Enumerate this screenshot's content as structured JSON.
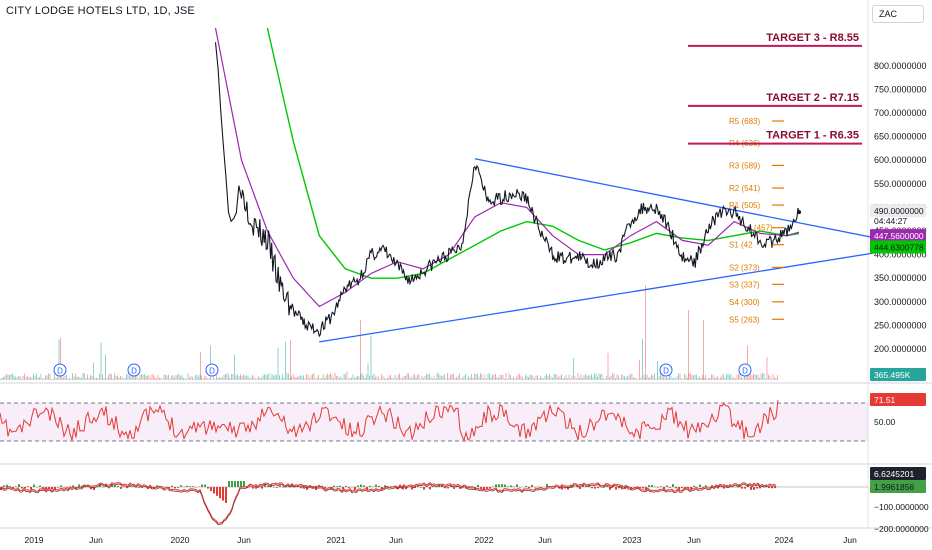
{
  "header": {
    "title": "CITY LODGE HOTELS LTD, 1D, JSE",
    "currency": "ZAC"
  },
  "targets": [
    {
      "label": "TARGET 3 - R8.55",
      "value": 855
    },
    {
      "label": "TARGET 2 - R7.15",
      "value": 715
    },
    {
      "label": "TARGET 1 - R6.35",
      "value": 635
    }
  ],
  "levels": [
    {
      "label": "R5 (683)",
      "value": 683
    },
    {
      "label": "R4 (636)",
      "value": 636
    },
    {
      "label": "R3 (589)",
      "value": 589
    },
    {
      "label": "R2 (541)",
      "value": 541
    },
    {
      "label": "R1 (505)",
      "value": 505
    },
    {
      "label": "(457)",
      "value": 457
    },
    {
      "label": "S1 (42",
      "value": 421
    },
    {
      "label": "S2 (373)",
      "value": 373
    },
    {
      "label": "S3 (337)",
      "value": 337
    },
    {
      "label": "S4 (300)",
      "value": 300
    },
    {
      "label": "S5 (263)",
      "value": 263
    }
  ],
  "price_badges": {
    "last": "490.0000000",
    "countdown": "04:44:27",
    "ma_purple": "447.5600000",
    "ma_green": "444.6300778",
    "volume": "365.495K",
    "rsi": "71.51",
    "macd_1": "6.6245201",
    "macd_2": "1.9961856"
  },
  "dividend_marker": "D",
  "chart_data": {
    "type": "line",
    "title": "CITY LODGE HOTELS LTD, 1D, JSE",
    "price_axis": {
      "ylim": [
        140,
        880
      ],
      "ticks": [
        "800.0000000",
        "750.0000000",
        "700.0000000",
        "650.0000000",
        "600.0000000",
        "550.0000000",
        "500.0000000",
        "450.0000000",
        "400.0000000",
        "350.0000000",
        "300.0000000",
        "250.0000000",
        "200.0000000",
        "150.0000000"
      ]
    },
    "rsi_axis": {
      "ticks": [
        "50.00"
      ],
      "bands": [
        70,
        30
      ]
    },
    "macd_axis": {
      "ticks": [
        "0.0000000",
        "−100.0000000",
        "−200.0000000"
      ]
    },
    "time_axis": [
      "2019",
      "Jun",
      "2020",
      "Jun",
      "2021",
      "Jun",
      "2022",
      "Jun",
      "2023",
      "Jun",
      "2024",
      "Jun"
    ],
    "series": [
      {
        "name": "price",
        "color": "#131722",
        "x": [
          "2020-03",
          "2020-04",
          "2020-05",
          "2020-06",
          "2020-07",
          "2020-08",
          "2020-09",
          "2020-10",
          "2020-11",
          "2020-12",
          "2021-01",
          "2021-02",
          "2021-03",
          "2021-04",
          "2021-05",
          "2021-06",
          "2021-07",
          "2021-08",
          "2021-09",
          "2021-10",
          "2021-11",
          "2021-12",
          "2022-01",
          "2022-02",
          "2022-03",
          "2022-04",
          "2022-05",
          "2022-06",
          "2022-07",
          "2022-08",
          "2022-09",
          "2022-10",
          "2022-11",
          "2022-12",
          "2023-01",
          "2023-02",
          "2023-03",
          "2023-04",
          "2023-05",
          "2023-06",
          "2023-07",
          "2023-08",
          "2023-09",
          "2023-10",
          "2023-11",
          "2023-12"
        ],
        "values": [
          880,
          480,
          540,
          460,
          430,
          330,
          280,
          250,
          240,
          270,
          330,
          345,
          400,
          410,
          375,
          345,
          365,
          385,
          400,
          420,
          600,
          510,
          520,
          530,
          520,
          450,
          400,
          390,
          395,
          380,
          390,
          400,
          470,
          500,
          500,
          455,
          395,
          385,
          460,
          490,
          490,
          460,
          430,
          425,
          448,
          490
        ]
      },
      {
        "name": "ma_purple",
        "color": "#9c27b0",
        "x": [
          "2020-03",
          "2020-05",
          "2020-07",
          "2020-09",
          "2020-11",
          "2021-01",
          "2021-03",
          "2021-05",
          "2021-07",
          "2021-09",
          "2021-11",
          "2022-01",
          "2022-03",
          "2022-05",
          "2022-07",
          "2022-09",
          "2022-11",
          "2023-01",
          "2023-03",
          "2023-05",
          "2023-07",
          "2023-09",
          "2023-11",
          "2023-12"
        ],
        "values": [
          880,
          600,
          450,
          350,
          290,
          320,
          360,
          385,
          370,
          400,
          480,
          510,
          500,
          440,
          400,
          400,
          440,
          470,
          430,
          420,
          470,
          445,
          440,
          447.56
        ]
      },
      {
        "name": "ma_green",
        "color": "#00c800",
        "x": [
          "2020-07",
          "2020-09",
          "2020-11",
          "2021-01",
          "2021-03",
          "2021-05",
          "2021-07",
          "2021-09",
          "2021-11",
          "2022-01",
          "2022-03",
          "2022-05",
          "2022-07",
          "2022-09",
          "2022-11",
          "2023-01",
          "2023-03",
          "2023-05",
          "2023-07",
          "2023-09",
          "2023-11",
          "2023-12"
        ],
        "values": [
          880,
          640,
          440,
          370,
          350,
          350,
          360,
          390,
          420,
          450,
          470,
          460,
          430,
          410,
          425,
          445,
          435,
          430,
          440,
          450,
          440,
          444.63
        ]
      }
    ],
    "trendlines": [
      {
        "from": [
          "2020-11",
          215
        ],
        "to": [
          "2024-07",
          418
        ],
        "color": "#2962ff"
      },
      {
        "from": [
          "2021-11",
          603
        ],
        "to": [
          "2024-07",
          418
        ],
        "color": "#2962ff"
      }
    ]
  }
}
